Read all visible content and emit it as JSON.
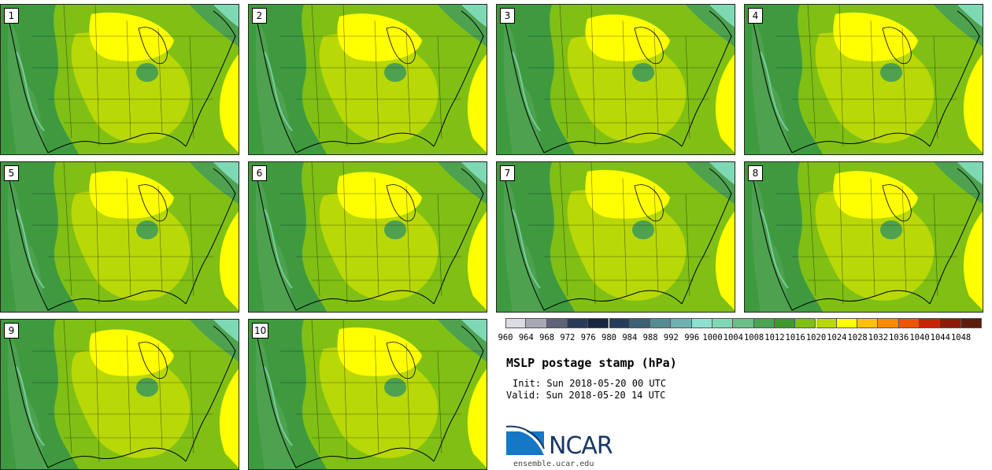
{
  "members": [
    "1",
    "2",
    "3",
    "4",
    "5",
    "6",
    "7",
    "8",
    "9",
    "10"
  ],
  "colorbar": {
    "levels": [
      "960",
      "964",
      "968",
      "972",
      "976",
      "980",
      "984",
      "988",
      "992",
      "996",
      "1000",
      "1004",
      "1008",
      "1012",
      "1016",
      "1020",
      "1024",
      "1028",
      "1032",
      "1036",
      "1040",
      "1044",
      "1048"
    ],
    "colors": [
      "#dcdde2",
      "#a7a8b4",
      "#5e6379",
      "#2b3a58",
      "#172540",
      "#253d5d",
      "#3d6176",
      "#548c94",
      "#6fb0b0",
      "#8ce0cf",
      "#7fd8b4",
      "#6abf87",
      "#4aa452",
      "#3e9a2e",
      "#80c015",
      "#b8d808",
      "#ffff00",
      "#ffc107",
      "#ff8a00",
      "#f05400",
      "#c82300",
      "#8f1a0a",
      "#5e1b0c"
    ]
  },
  "title": "MSLP postage stamp (hPa)",
  "init": "Init: Sun 2018-05-20 00 UTC",
  "valid": "Valid: Sun 2018-05-20 14 UTC",
  "logo": {
    "text": "NCAR",
    "colors": {
      "blue": "#1578c6",
      "navy": "#1a3764"
    }
  },
  "site": "ensemble.ucar.edu",
  "map_colors": {
    "dark_green": "#3f9a3f",
    "mid_green": "#4ea14f",
    "yellow_green": "#80c015",
    "lime": "#b8d808",
    "yellow": "#ffff00",
    "teal": "#7fd8b4"
  }
}
